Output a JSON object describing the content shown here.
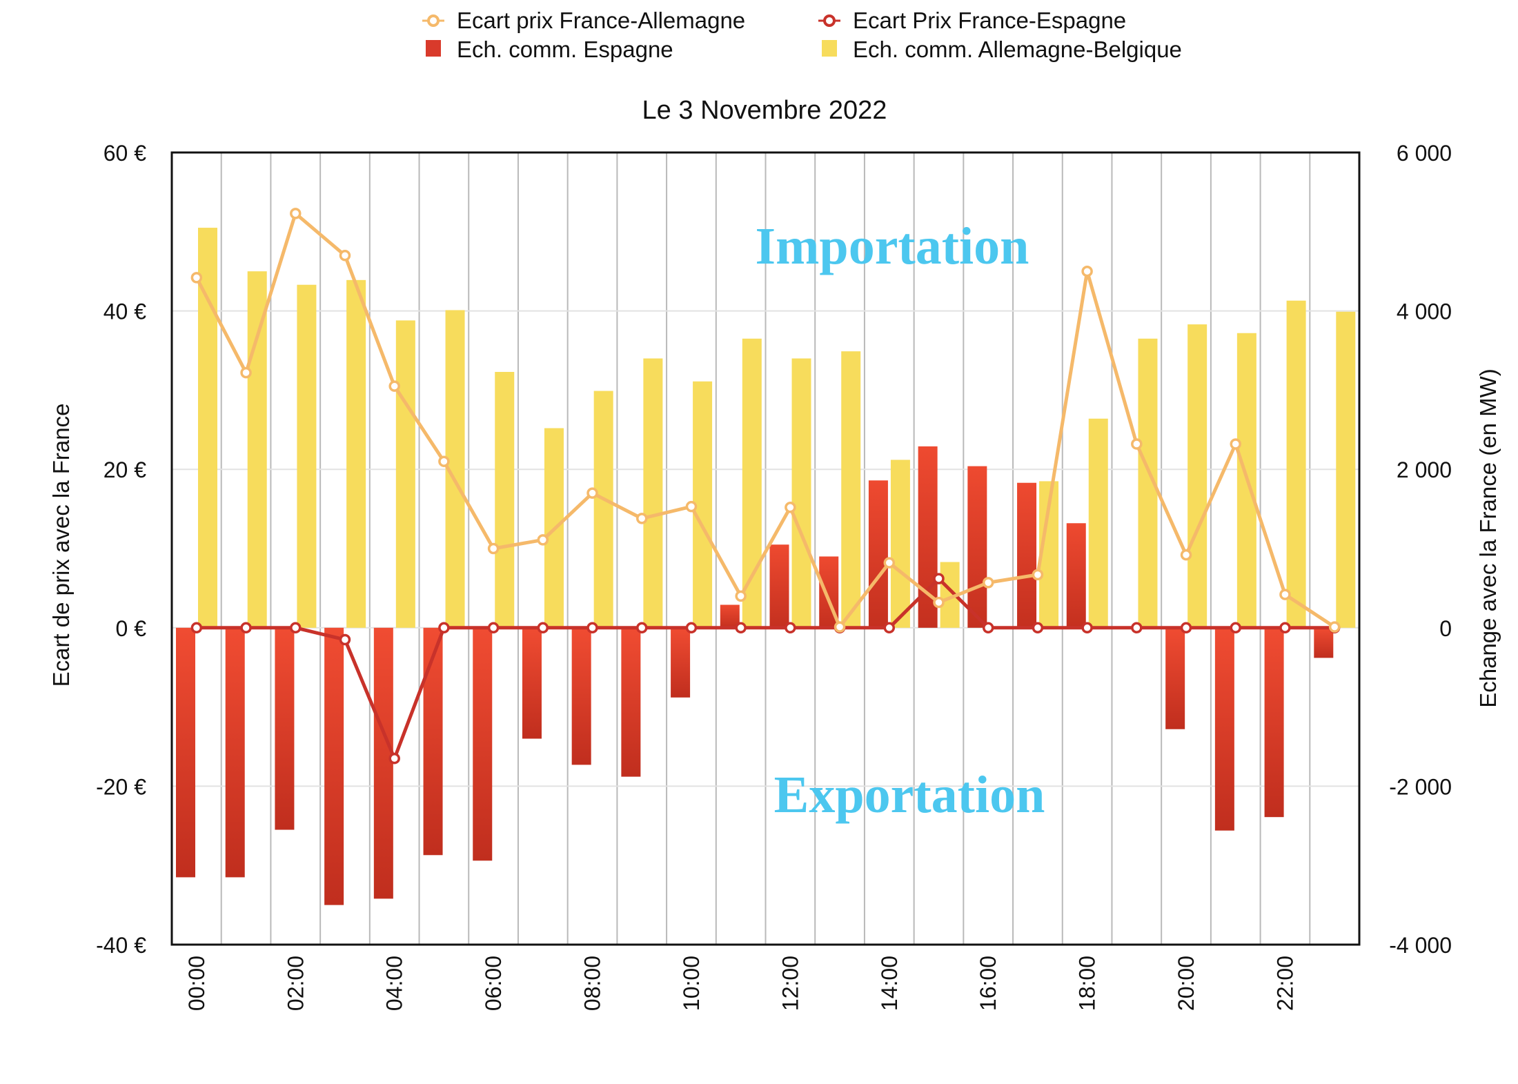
{
  "chart_data": {
    "type": "bar",
    "title": "Le 3 Novembre 2022",
    "ylabel": "Ecart de prix avec la France",
    "y2label": "Echange avec la France  (en MW)",
    "xlabel": "",
    "ylim": [
      -40,
      60
    ],
    "y2lim": [
      -4000,
      6000
    ],
    "yticks": [
      "60 €",
      "40 €",
      "20 €",
      "0 €",
      "-20 €",
      "-40 €"
    ],
    "y2ticks": [
      "6 000",
      "4 000",
      "2 000",
      "0",
      "-2 000",
      "-4 000"
    ],
    "categories": [
      "00:00",
      "01:00",
      "02:00",
      "03:00",
      "04:00",
      "05:00",
      "06:00",
      "07:00",
      "08:00",
      "09:00",
      "10:00",
      "11:00",
      "12:00",
      "13:00",
      "14:00",
      "15:00",
      "16:00",
      "17:00",
      "18:00",
      "19:00",
      "20:00",
      "21:00",
      "22:00",
      "23:00"
    ],
    "x_tick_labels": [
      "00:00",
      "02:00",
      "04:00",
      "06:00",
      "08:00",
      "10:00",
      "12:00",
      "14:00",
      "16:00",
      "18:00",
      "20:00",
      "22:00"
    ],
    "grid": "vertical lines at each hour, horizontal lines at each y tick",
    "legend_position": "top",
    "legend": [
      {
        "label": "Ecart prix France-Allemagne",
        "marker": "circle-line",
        "color": "#f5b96a"
      },
      {
        "label": "Ecart Prix France-Espagne",
        "marker": "circle-line",
        "color": "#c8322a"
      },
      {
        "label": "Ech. comm. Espagne",
        "marker": "square",
        "color": "#d93a2b"
      },
      {
        "label": "Ech. comm. Allemagne-Belgique",
        "marker": "square",
        "color": "#f7dc5c"
      }
    ],
    "series": [
      {
        "name": "Ech. comm. Espagne",
        "kind": "bar",
        "axis": "right",
        "color": "#d93a2b",
        "values": [
          -3150,
          -3150,
          -2550,
          -3500,
          -3420,
          -2870,
          -2940,
          -1400,
          -1730,
          -1880,
          -880,
          290,
          1050,
          900,
          1860,
          2290,
          2040,
          1830,
          1320,
          0,
          -1280,
          -2560,
          -2390,
          -380
        ]
      },
      {
        "name": "Ech. comm. Allemagne-Belgique",
        "kind": "bar",
        "axis": "right",
        "color": "#f7dc5c",
        "values": [
          5050,
          4500,
          4330,
          4390,
          3880,
          4010,
          3230,
          2520,
          2990,
          3400,
          3110,
          3650,
          3400,
          3490,
          2120,
          830,
          0,
          1850,
          2640,
          3650,
          3830,
          3720,
          4130,
          3990
        ]
      },
      {
        "name": "Ecart prix France-Allemagne",
        "kind": "line",
        "axis": "left",
        "color": "#f5b96a",
        "values": [
          44.2,
          32.2,
          52.3,
          47.0,
          30.5,
          21.0,
          10.0,
          11.1,
          17.0,
          13.8,
          15.3,
          4.0,
          15.2,
          0.1,
          8.2,
          3.2,
          5.7,
          6.7,
          45.0,
          23.2,
          9.2,
          23.2,
          4.2,
          0.1
        ]
      },
      {
        "name": "Ecart Prix France-Espagne",
        "kind": "line",
        "axis": "left",
        "color": "#c8322a",
        "values": [
          0,
          0,
          0,
          -1.5,
          -16.5,
          0,
          0,
          0,
          0,
          0,
          0,
          0,
          0,
          0,
          0,
          6.2,
          0,
          0,
          0,
          0,
          0,
          0,
          0,
          0
        ]
      }
    ],
    "annotations": [
      {
        "text": "Importation",
        "color": "#4cc7ef"
      },
      {
        "text": "Exportation",
        "color": "#4cc7ef"
      }
    ]
  }
}
